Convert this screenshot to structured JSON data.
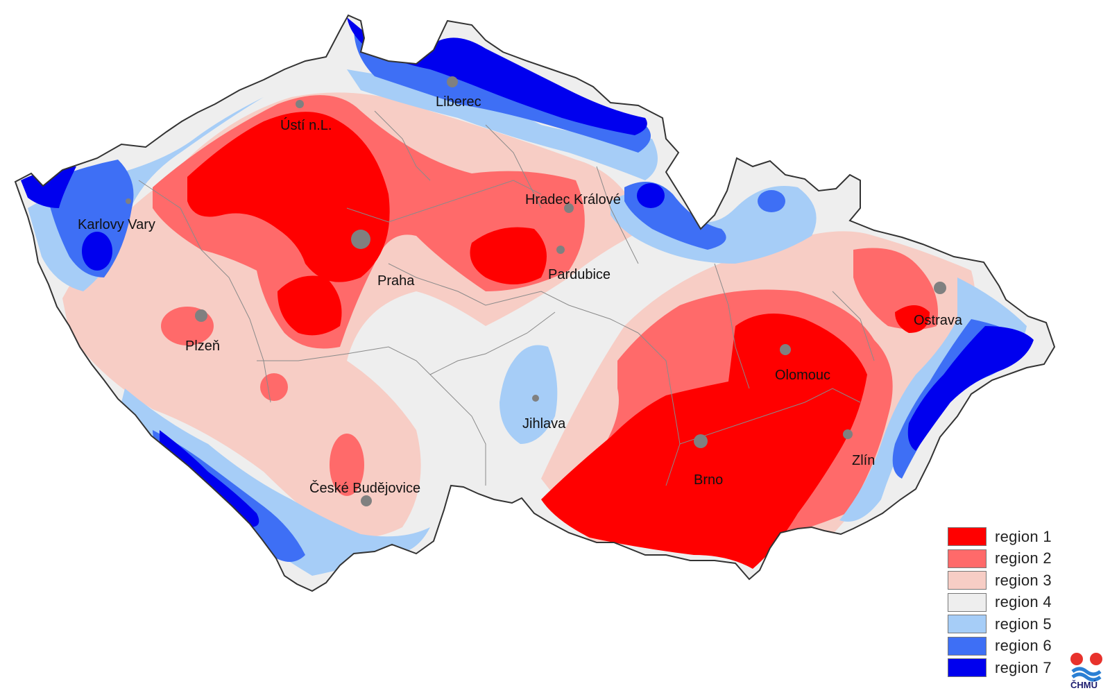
{
  "colors": {
    "region1": "#ff0000",
    "region2": "#ff6a6a",
    "region3": "#f7cdc5",
    "region4": "#eeeeee",
    "region5": "#a6cdf7",
    "region6": "#3e6ff5",
    "region7": "#0000ee",
    "border": "#333333",
    "district_lines": "#8a8a8a",
    "city_marker": "#808080"
  },
  "cities": [
    {
      "label": "Liberec",
      "icon": "city-marker-icon"
    },
    {
      "label": "Ústí n.L.",
      "icon": "city-marker-icon"
    },
    {
      "label": "Karlovy Vary",
      "icon": "city-marker-icon"
    },
    {
      "label": "Hradec Králové",
      "icon": "city-marker-icon"
    },
    {
      "label": "Praha",
      "icon": "city-marker-icon"
    },
    {
      "label": "Pardubice",
      "icon": "city-marker-icon"
    },
    {
      "label": "Ostrava",
      "icon": "city-marker-icon"
    },
    {
      "label": "Plzeň",
      "icon": "city-marker-icon"
    },
    {
      "label": "Olomouc",
      "icon": "city-marker-icon"
    },
    {
      "label": "Jihlava",
      "icon": "city-marker-icon"
    },
    {
      "label": "Zlín",
      "icon": "city-marker-icon"
    },
    {
      "label": "Brno",
      "icon": "city-marker-icon"
    },
    {
      "label": "České Budějovice",
      "icon": "city-marker-icon"
    }
  ],
  "legend": [
    {
      "label": "region 1",
      "color": "#ff0000"
    },
    {
      "label": "region 2",
      "color": "#ff6a6a"
    },
    {
      "label": "region 3",
      "color": "#f7cdc5"
    },
    {
      "label": "region 4",
      "color": "#eeeeee"
    },
    {
      "label": "region 5",
      "color": "#a6cdf7"
    },
    {
      "label": "region 6",
      "color": "#3e6ff5"
    },
    {
      "label": "region 7",
      "color": "#0000ee"
    }
  ],
  "logo": {
    "text": "ČHMÚ",
    "icon": "chmu-logo-icon"
  }
}
